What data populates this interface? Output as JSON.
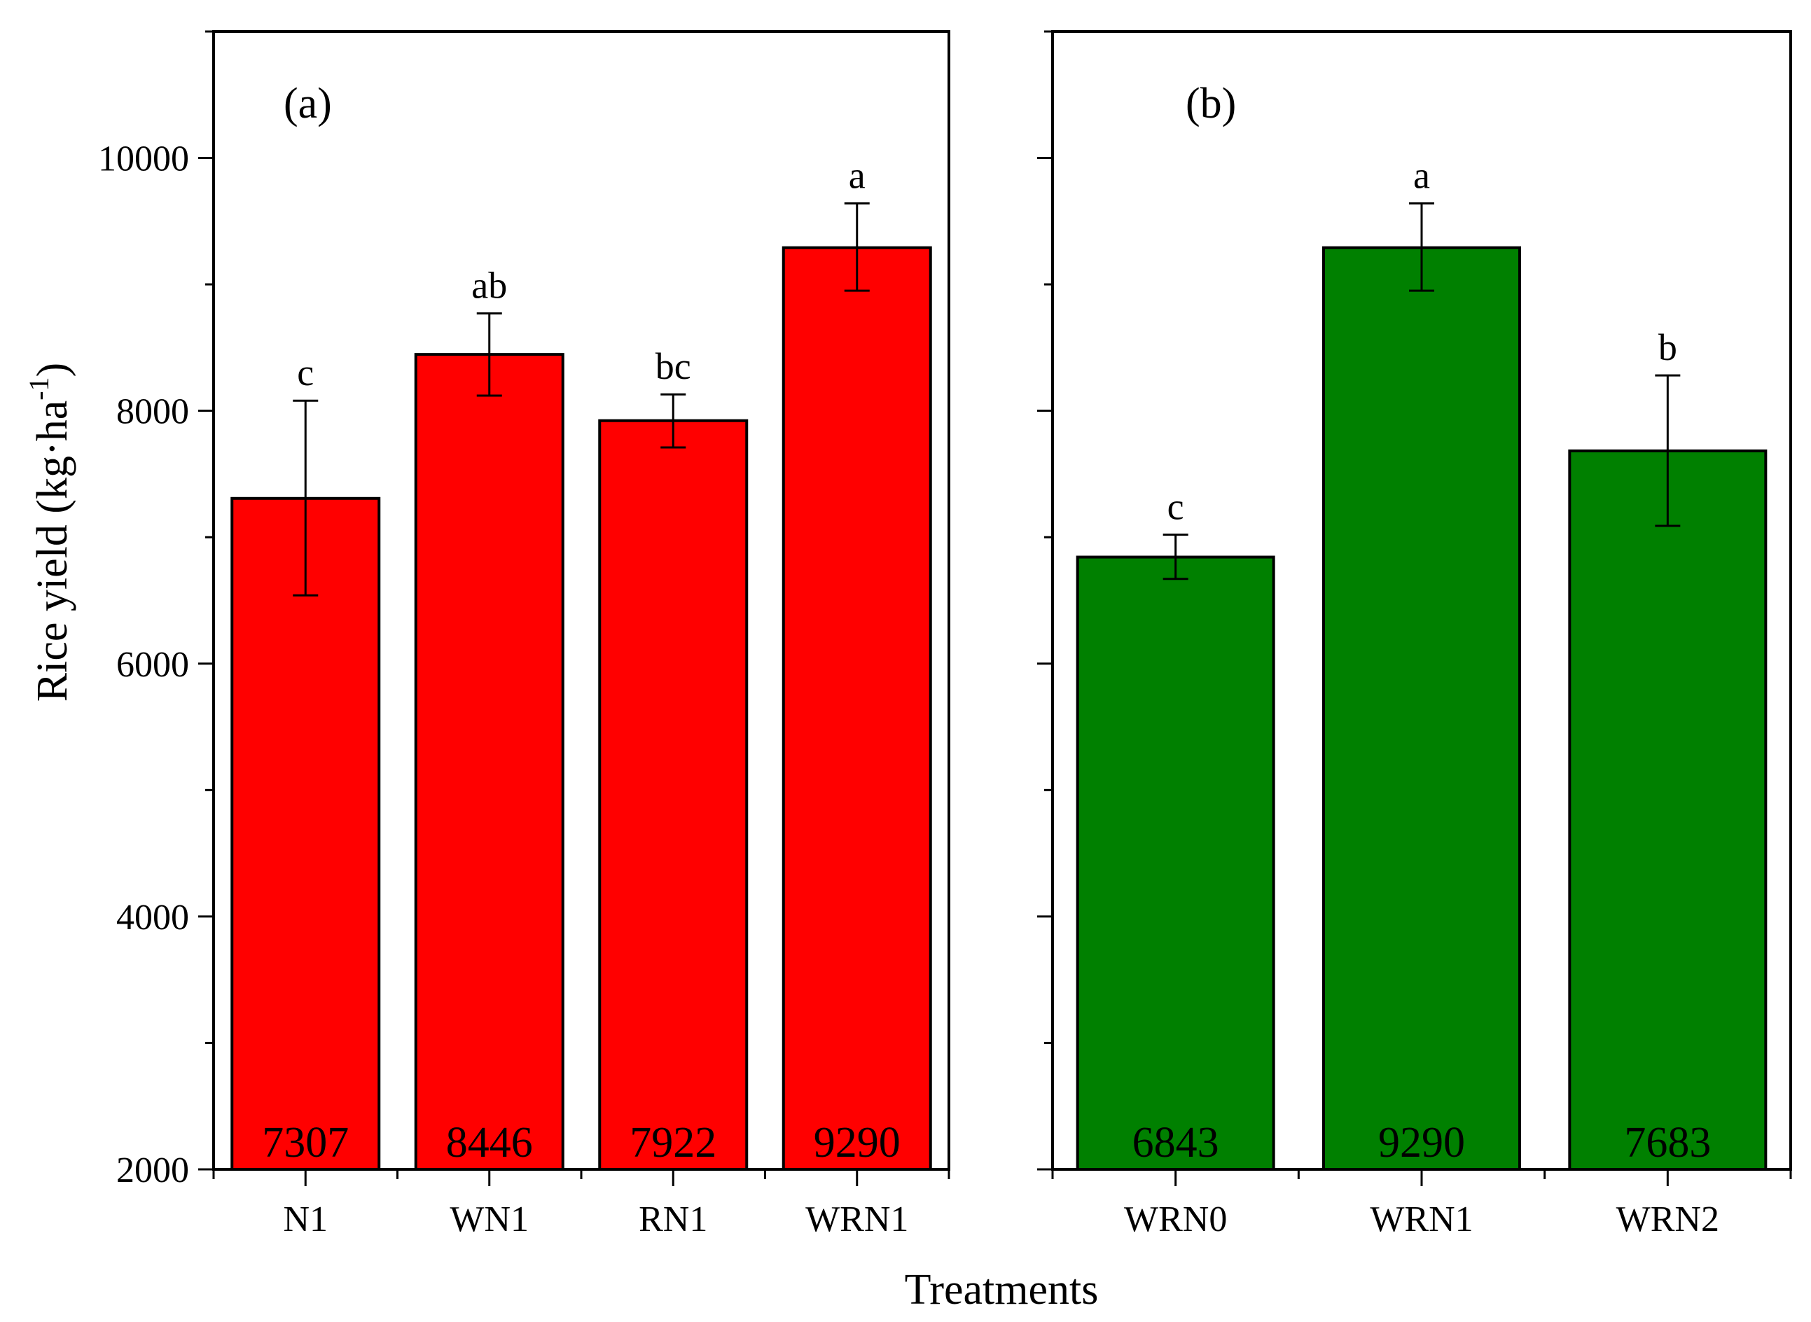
{
  "chart_data": {
    "type": "bar",
    "ylabel": "Rice yield (kg·ha",
    "ylabel_superscript": "-1",
    "ylabel_close": ")",
    "xlabel": "Treatments",
    "ylim": [
      2000,
      11000
    ],
    "yticks": [
      "2000",
      "4000",
      "6000",
      "8000",
      "10000"
    ],
    "panels": [
      {
        "label": "(a)",
        "color": "#ff0000",
        "categories": [
          "N1",
          "WN1",
          "RN1",
          "WRN1"
        ],
        "values": [
          7307,
          8446,
          7922,
          9290
        ],
        "value_labels": [
          "7307",
          "8446",
          "7922",
          "9290"
        ],
        "error_low": [
          6540,
          8120,
          7710,
          8950
        ],
        "error_high": [
          8080,
          8770,
          8130,
          9640
        ],
        "significance": [
          "c",
          "ab",
          "bc",
          "a"
        ]
      },
      {
        "label": "(b)",
        "color": "#008000",
        "categories": [
          "WRN0",
          "WRN1",
          "WRN2"
        ],
        "values": [
          6843,
          9290,
          7683
        ],
        "value_labels": [
          "6843",
          "9290",
          "7683"
        ],
        "error_low": [
          6670,
          8950,
          7090
        ],
        "error_high": [
          7020,
          9640,
          8280
        ],
        "significance": [
          "c",
          "a",
          "b"
        ]
      }
    ]
  }
}
